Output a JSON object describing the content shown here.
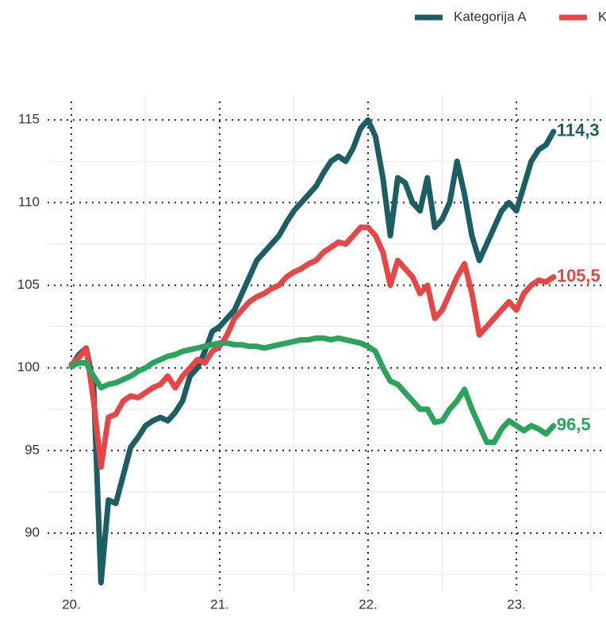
{
  "chart_data": {
    "type": "line",
    "x": [
      2020.0,
      2020.05,
      2020.1,
      2020.15,
      2020.2,
      2020.25,
      2020.3,
      2020.35,
      2020.4,
      2020.45,
      2020.5,
      2020.55,
      2020.6,
      2020.65,
      2020.7,
      2020.75,
      2020.8,
      2020.85,
      2020.9,
      2020.95,
      2021.0,
      2021.05,
      2021.1,
      2021.15,
      2021.2,
      2021.25,
      2021.3,
      2021.35,
      2021.4,
      2021.45,
      2021.5,
      2021.55,
      2021.6,
      2021.65,
      2021.7,
      2021.75,
      2021.8,
      2021.85,
      2021.9,
      2021.95,
      2022.0,
      2022.05,
      2022.1,
      2022.15,
      2022.2,
      2022.25,
      2022.3,
      2022.35,
      2022.4,
      2022.45,
      2022.5,
      2022.55,
      2022.6,
      2022.65,
      2022.7,
      2022.75,
      2022.8,
      2022.85,
      2022.9,
      2022.95,
      2023.0,
      2023.05,
      2023.1,
      2023.15,
      2023.2,
      2023.25
    ],
    "series": [
      {
        "name": "Kategorija A",
        "color": "#1b5e63",
        "values": [
          100.1,
          100.8,
          101.2,
          99,
          87,
          92,
          91.8,
          93.5,
          95.2,
          95.8,
          96.5,
          96.8,
          97,
          96.8,
          97.3,
          98,
          99.5,
          100,
          101,
          102.2,
          102.5,
          103,
          103.5,
          104.5,
          105.5,
          106.5,
          107,
          107.5,
          108,
          108.8,
          109.5,
          110,
          110.5,
          111,
          111.8,
          112.5,
          112.8,
          112.5,
          113.3,
          114.5,
          115,
          114,
          111.5,
          108,
          111.5,
          111.2,
          110,
          109.5,
          111.5,
          108.5,
          109,
          110,
          112.5,
          110.5,
          108,
          106.5,
          107.5,
          108.5,
          109.5,
          110,
          109.5,
          111,
          112.5,
          113.2,
          113.5,
          114.3
        ],
        "value_labels": [
          null,
          null,
          null,
          null,
          null,
          null,
          null,
          null,
          null,
          null,
          null,
          null,
          null,
          null,
          null,
          null,
          null,
          null,
          null,
          null,
          null,
          null,
          null,
          null,
          null,
          null,
          null,
          null,
          null,
          null,
          null,
          null,
          null,
          null,
          null,
          null,
          null,
          null,
          null,
          null,
          null,
          null,
          null,
          null,
          null,
          null,
          null,
          null,
          null,
          null,
          null,
          null,
          null,
          null,
          null,
          null,
          null,
          null,
          null,
          null,
          null,
          null,
          null,
          null,
          null,
          "114,3"
        ]
      },
      {
        "name": "K",
        "color": "#e84646",
        "values": [
          100.2,
          100.6,
          101.2,
          98,
          94,
          97,
          97.2,
          98,
          98.3,
          98.2,
          98.5,
          98.8,
          99,
          99.5,
          98.8,
          99.5,
          100,
          100.5,
          100.3,
          101,
          101.3,
          102,
          103,
          103.5,
          104,
          104.3,
          104.5,
          104.8,
          105,
          105.5,
          105.8,
          106,
          106.3,
          106.5,
          107,
          107.3,
          107.6,
          107.5,
          108,
          108.5,
          108.5,
          108,
          107,
          105,
          106.5,
          106,
          105.5,
          104.5,
          105,
          103,
          103.5,
          104.5,
          105.5,
          106.3,
          104.5,
          102,
          102.5,
          103,
          103.5,
          104,
          103.5,
          104.5,
          105,
          105.3,
          105.2,
          105.5
        ],
        "value_labels": [
          null,
          null,
          null,
          null,
          null,
          null,
          null,
          null,
          null,
          null,
          null,
          null,
          null,
          null,
          null,
          null,
          null,
          null,
          null,
          null,
          null,
          null,
          null,
          null,
          null,
          null,
          null,
          null,
          null,
          null,
          null,
          null,
          null,
          null,
          null,
          null,
          null,
          null,
          null,
          null,
          null,
          null,
          null,
          null,
          null,
          null,
          null,
          null,
          null,
          null,
          null,
          null,
          null,
          null,
          null,
          null,
          null,
          null,
          null,
          null,
          null,
          null,
          null,
          null,
          null,
          "105,5"
        ]
      },
      {
        "color": "#2aa35c",
        "values": [
          100.1,
          100.3,
          100.3,
          99.5,
          98.8,
          99,
          99.1,
          99.3,
          99.5,
          99.8,
          100,
          100.3,
          100.5,
          100.7,
          100.8,
          101,
          101.1,
          101.2,
          101.3,
          101.4,
          101.5,
          101.5,
          101.4,
          101.4,
          101.3,
          101.3,
          101.2,
          101.3,
          101.4,
          101.5,
          101.6,
          101.7,
          101.7,
          101.8,
          101.8,
          101.7,
          101.8,
          101.7,
          101.6,
          101.5,
          101.3,
          101,
          100,
          99.2,
          99,
          98.5,
          98,
          97.5,
          97.5,
          96.7,
          96.8,
          97.5,
          98,
          98.7,
          97.5,
          96.5,
          95.5,
          95.5,
          96.3,
          96.8,
          96.5,
          96.2,
          96.5,
          96.3,
          96,
          96.5
        ],
        "value_labels": [
          null,
          null,
          null,
          null,
          null,
          null,
          null,
          null,
          null,
          null,
          null,
          null,
          null,
          null,
          null,
          null,
          null,
          null,
          null,
          null,
          null,
          null,
          null,
          null,
          null,
          null,
          null,
          null,
          null,
          null,
          null,
          null,
          null,
          null,
          null,
          null,
          null,
          null,
          null,
          null,
          null,
          null,
          null,
          null,
          null,
          null,
          null,
          null,
          null,
          null,
          null,
          null,
          null,
          null,
          null,
          null,
          null,
          null,
          null,
          null,
          null,
          null,
          null,
          null,
          null,
          "96,5"
        ]
      }
    ],
    "xlim": [
      2019.84,
      2023.6
    ],
    "xticks": [
      {
        "value": 2020,
        "label": "20."
      },
      {
        "value": 2021,
        "label": "21."
      },
      {
        "value": 2022,
        "label": "22."
      },
      {
        "value": 2023,
        "label": "23."
      }
    ],
    "x_minor_grid": [
      2020.5,
      2021.5,
      2022.5,
      2023.5
    ],
    "ylim": [
      86.5,
      116.5
    ],
    "yticks": [
      90,
      95,
      100,
      105,
      110,
      115
    ],
    "y_minor_grid": [
      87.5,
      92.5,
      97.5,
      102.5,
      107.5,
      112.5
    ],
    "grid": true,
    "legend": "top-right"
  }
}
